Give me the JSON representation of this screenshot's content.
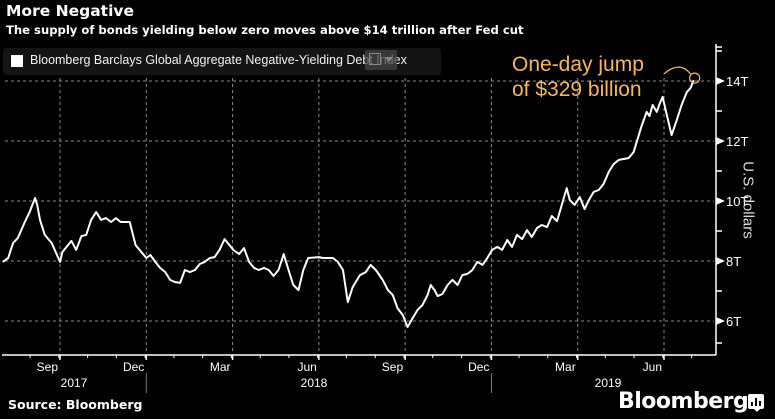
{
  "header": {
    "title": "More Negative",
    "subtitle": "The supply of bonds yielding below zero moves above $14 trillion after Fed cut"
  },
  "legend": {
    "label": "Bloomberg Barclays Global Aggregate Negative-Yielding Debt Index",
    "swatch_color": "#ffffff"
  },
  "annotation": {
    "line1": "One-day jump",
    "line2": "of $329 billion",
    "color": "#f5b567"
  },
  "footer": {
    "source": "Source: Bloomberg",
    "brand": "Bloomberg"
  },
  "chart_data": {
    "type": "line",
    "title": "More Negative",
    "subtitle": "The supply of bonds yielding below zero moves above $14 trillion after Fed cut",
    "xlabel": "",
    "ylabel": "U.S. dollars",
    "y_axis_side": "right",
    "ylim": [
      5.2,
      16.0
    ],
    "yticks": [
      6,
      8,
      10,
      12,
      14
    ],
    "ytick_labels": [
      "6T",
      "8T",
      "10T",
      "12T",
      "14T"
    ],
    "grid": true,
    "legend_placement": "top-left",
    "x_month_ticks": [
      {
        "label": "Sep",
        "x": 2017.67
      },
      {
        "label": "Dec",
        "x": 2017.92
      },
      {
        "label": "Mar",
        "x": 2018.17
      },
      {
        "label": "Jun",
        "x": 2018.42
      },
      {
        "label": "Sep",
        "x": 2018.67
      },
      {
        "label": "Dec",
        "x": 2018.92
      },
      {
        "label": "Mar",
        "x": 2019.17
      },
      {
        "label": "Jun",
        "x": 2019.42
      }
    ],
    "x_year_labels": [
      {
        "label": "2017",
        "x": 2017.67
      },
      {
        "label": "2018",
        "x": 2018.5
      },
      {
        "label": "2019",
        "x": 2019.38
      }
    ],
    "xlim": [
      2017.5,
      2019.6
    ],
    "series": [
      {
        "name": "Bloomberg Barclays Global Aggregate Negative-Yielding Debt Index",
        "color": "#ffffff",
        "unit": "trillion USD",
        "points": [
          [
            2017.504,
            7.97
          ],
          [
            2017.52,
            8.1
          ],
          [
            2017.534,
            8.6
          ],
          [
            2017.548,
            8.77
          ],
          [
            2017.568,
            9.3
          ],
          [
            2017.582,
            9.63
          ],
          [
            2017.59,
            9.87
          ],
          [
            2017.598,
            10.1
          ],
          [
            2017.604,
            9.87
          ],
          [
            2017.612,
            9.37
          ],
          [
            2017.626,
            8.87
          ],
          [
            2017.646,
            8.6
          ],
          [
            2017.67,
            7.97
          ],
          [
            2017.677,
            8.3
          ],
          [
            2017.703,
            8.67
          ],
          [
            2017.717,
            8.37
          ],
          [
            2017.732,
            8.83
          ],
          [
            2017.746,
            8.87
          ],
          [
            2017.76,
            9.37
          ],
          [
            2017.775,
            9.63
          ],
          [
            2017.789,
            9.37
          ],
          [
            2017.803,
            9.43
          ],
          [
            2017.818,
            9.3
          ],
          [
            2017.832,
            9.43
          ],
          [
            2017.846,
            9.3
          ],
          [
            2017.872,
            9.3
          ],
          [
            2017.889,
            8.53
          ],
          [
            2017.92,
            8.1
          ],
          [
            2017.932,
            8.2
          ],
          [
            2017.946,
            7.97
          ],
          [
            2017.96,
            7.77
          ],
          [
            2017.975,
            7.63
          ],
          [
            2017.989,
            7.37
          ],
          [
            2018.003,
            7.3
          ],
          [
            2018.018,
            7.27
          ],
          [
            2018.032,
            7.7
          ],
          [
            2018.046,
            7.63
          ],
          [
            2018.061,
            7.7
          ],
          [
            2018.075,
            7.9
          ],
          [
            2018.089,
            7.97
          ],
          [
            2018.104,
            8.1
          ],
          [
            2018.118,
            8.13
          ],
          [
            2018.132,
            8.37
          ],
          [
            2018.147,
            8.73
          ],
          [
            2018.161,
            8.53
          ],
          [
            2018.172,
            8.37
          ],
          [
            2018.189,
            8.23
          ],
          [
            2018.203,
            8.43
          ],
          [
            2018.218,
            7.97
          ],
          [
            2018.232,
            7.77
          ],
          [
            2018.246,
            7.7
          ],
          [
            2018.261,
            7.77
          ],
          [
            2018.275,
            7.7
          ],
          [
            2018.289,
            7.5
          ],
          [
            2018.303,
            7.7
          ],
          [
            2018.318,
            8.23
          ],
          [
            2018.332,
            7.7
          ],
          [
            2018.346,
            7.2
          ],
          [
            2018.361,
            7.03
          ],
          [
            2018.375,
            7.7
          ],
          [
            2018.389,
            8.1
          ],
          [
            2018.42,
            8.13
          ],
          [
            2018.432,
            8.1
          ],
          [
            2018.461,
            8.1
          ],
          [
            2018.475,
            7.97
          ],
          [
            2018.49,
            7.7
          ],
          [
            2018.504,
            6.63
          ],
          [
            2018.518,
            7.13
          ],
          [
            2018.539,
            7.53
          ],
          [
            2018.556,
            7.63
          ],
          [
            2018.57,
            7.87
          ],
          [
            2018.585,
            7.7
          ],
          [
            2018.605,
            7.37
          ],
          [
            2018.62,
            7.03
          ],
          [
            2018.634,
            6.87
          ],
          [
            2018.648,
            6.43
          ],
          [
            2018.663,
            6.2
          ],
          [
            2018.677,
            5.8
          ],
          [
            2018.692,
            6.1
          ],
          [
            2018.706,
            6.37
          ],
          [
            2018.72,
            6.53
          ],
          [
            2018.735,
            6.87
          ],
          [
            2018.744,
            7.2
          ],
          [
            2018.755,
            7.03
          ],
          [
            2018.764,
            6.83
          ],
          [
            2018.778,
            6.9
          ],
          [
            2018.793,
            7.2
          ],
          [
            2018.807,
            7.37
          ],
          [
            2018.822,
            7.2
          ],
          [
            2018.836,
            7.53
          ],
          [
            2018.85,
            7.57
          ],
          [
            2018.865,
            7.7
          ],
          [
            2018.879,
            7.97
          ],
          [
            2018.894,
            7.87
          ],
          [
            2018.908,
            8.1
          ],
          [
            2018.922,
            8.37
          ],
          [
            2018.937,
            8.47
          ],
          [
            2018.951,
            8.37
          ],
          [
            2018.966,
            8.7
          ],
          [
            2018.98,
            8.47
          ],
          [
            2018.994,
            8.87
          ],
          [
            2019.009,
            8.73
          ],
          [
            2019.023,
            9.03
          ],
          [
            2019.037,
            8.8
          ],
          [
            2019.052,
            9.1
          ],
          [
            2019.066,
            9.2
          ],
          [
            2019.081,
            9.13
          ],
          [
            2019.095,
            9.5
          ],
          [
            2019.11,
            9.33
          ],
          [
            2019.124,
            9.87
          ],
          [
            2019.138,
            10.43
          ],
          [
            2019.147,
            10.03
          ],
          [
            2019.161,
            9.87
          ],
          [
            2019.176,
            10.13
          ],
          [
            2019.19,
            9.73
          ],
          [
            2019.202,
            10.03
          ],
          [
            2019.216,
            10.3
          ],
          [
            2019.231,
            10.37
          ],
          [
            2019.245,
            10.57
          ],
          [
            2019.26,
            10.97
          ],
          [
            2019.274,
            11.23
          ],
          [
            2019.289,
            11.37
          ],
          [
            2019.303,
            11.4
          ],
          [
            2019.317,
            11.43
          ],
          [
            2019.332,
            11.63
          ],
          [
            2019.341,
            11.97
          ],
          [
            2019.355,
            12.5
          ],
          [
            2019.37,
            12.97
          ],
          [
            2019.378,
            12.83
          ],
          [
            2019.387,
            13.2
          ],
          [
            2019.399,
            12.97
          ],
          [
            2019.407,
            13.23
          ],
          [
            2019.416,
            13.47
          ],
          [
            2019.428,
            12.87
          ],
          [
            2019.442,
            12.2
          ],
          [
            2019.457,
            12.7
          ],
          [
            2019.471,
            13.2
          ],
          [
            2019.486,
            13.63
          ],
          [
            2019.497,
            13.77
          ],
          [
            2019.506,
            14.03
          ]
        ]
      }
    ],
    "annotations": [
      {
        "text": "One-day jump of $329 billion",
        "x": 2019.506,
        "y": 14.03,
        "color": "#f5b567"
      }
    ]
  }
}
